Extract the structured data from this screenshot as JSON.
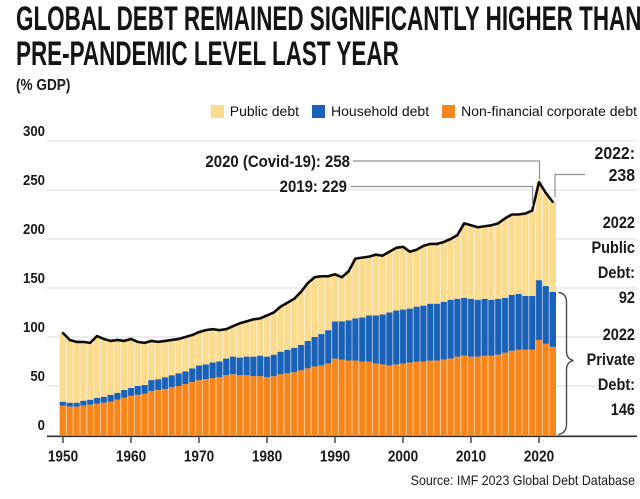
{
  "title": {
    "line1": "GLOBAL DEBT REMAINED SIGNIFICANTLY HIGHER THAN",
    "line2": "PRE-PANDEMIC LEVEL LAST YEAR"
  },
  "units_label": "(% GDP)",
  "source": "Source: IMF 2023 Global Debt Database",
  "chart_data": {
    "type": "bar",
    "stacked": true,
    "grid": true,
    "legend_position": "top",
    "ylabel": "(% GDP)",
    "ylim": [
      0,
      300
    ],
    "ytick_step": 50,
    "y_ticks": [
      0,
      50,
      100,
      150,
      200,
      250,
      300
    ],
    "x_ticks": [
      1950,
      1960,
      1970,
      1980,
      1990,
      2000,
      2010,
      2020
    ],
    "years": [
      1950,
      1951,
      1952,
      1953,
      1954,
      1955,
      1956,
      1957,
      1958,
      1959,
      1960,
      1961,
      1962,
      1963,
      1964,
      1965,
      1966,
      1967,
      1968,
      1969,
      1970,
      1971,
      1972,
      1973,
      1974,
      1975,
      1976,
      1977,
      1978,
      1979,
      1980,
      1981,
      1982,
      1983,
      1984,
      1985,
      1986,
      1987,
      1988,
      1989,
      1990,
      1991,
      1992,
      1993,
      1994,
      1995,
      1996,
      1997,
      1998,
      1999,
      2000,
      2001,
      2002,
      2003,
      2004,
      2005,
      2006,
      2007,
      2008,
      2009,
      2010,
      2011,
      2012,
      2013,
      2014,
      2015,
      2016,
      2017,
      2018,
      2019,
      2020,
      2021,
      2022
    ],
    "stack_order": [
      "Non-financial corporate debt",
      "Household debt",
      "Public debt"
    ],
    "series": [
      {
        "name": "Public debt",
        "color": "#FBDC8F",
        "values": [
          70,
          64,
          62,
          60,
          58,
          63,
          59,
          55,
          54,
          50,
          50,
          45,
          43,
          40,
          38,
          37,
          36,
          35,
          35,
          34,
          34,
          35,
          34,
          32,
          30,
          31,
          35,
          36,
          38,
          38,
          42,
          43,
          46,
          48,
          50,
          54,
          59,
          61,
          59,
          55,
          48,
          45,
          50,
          61,
          61,
          60,
          62,
          60,
          62,
          64,
          64,
          58,
          58,
          61,
          61,
          61,
          61,
          62,
          65,
          76,
          75,
          74,
          74,
          76,
          77,
          81,
          82,
          81,
          84,
          87,
          100,
          95,
          92
        ]
      },
      {
        "name": "Household debt",
        "color": "#1A61B8",
        "values": [
          4,
          4,
          4,
          5,
          5,
          6,
          6,
          7,
          7,
          8,
          8,
          9,
          9,
          11,
          11,
          12,
          12,
          13,
          13,
          14,
          15,
          15,
          16,
          16,
          17,
          18,
          18,
          19,
          20,
          21,
          21,
          22,
          23,
          24,
          25,
          26,
          28,
          30,
          32,
          34,
          38,
          39,
          41,
          43,
          45,
          47,
          49,
          51,
          54,
          55,
          55,
          55,
          56,
          57,
          58,
          58,
          59,
          60,
          59,
          59,
          59,
          58,
          58,
          57,
          57,
          56,
          57,
          57,
          55,
          55,
          61,
          59,
          56
        ]
      },
      {
        "name": "Non-financial corporate debt",
        "color": "#F6861C",
        "values": [
          30,
          29,
          29,
          30,
          31,
          32,
          33,
          34,
          36,
          38,
          40,
          41,
          42,
          45,
          46,
          47,
          49,
          50,
          52,
          54,
          56,
          57,
          58,
          59,
          61,
          62,
          61,
          61,
          60,
          60,
          59,
          60,
          62,
          63,
          64,
          66,
          68,
          70,
          71,
          73,
          78,
          77,
          76,
          76,
          75,
          75,
          73,
          72,
          71,
          72,
          73,
          74,
          75,
          75,
          76,
          76,
          77,
          78,
          80,
          81,
          80,
          80,
          81,
          81,
          82,
          84,
          86,
          87,
          87,
          87,
          97,
          93,
          90
        ]
      }
    ],
    "total_line": {
      "color": "#0d0d0d"
    },
    "annotations": [
      {
        "id": "covid-2020",
        "text": "2020 (Covid-19): 258"
      },
      {
        "id": "pre-pandemic-2019",
        "text": "2019: 229"
      },
      {
        "id": "latest-2022",
        "lines": [
          "2022:",
          "238"
        ]
      },
      {
        "id": "public-2022",
        "lines": [
          "2022",
          "Public",
          "Debt:",
          "92"
        ]
      },
      {
        "id": "private-2022",
        "lines": [
          "2022",
          "Private",
          "Debt:",
          "146"
        ]
      }
    ]
  }
}
